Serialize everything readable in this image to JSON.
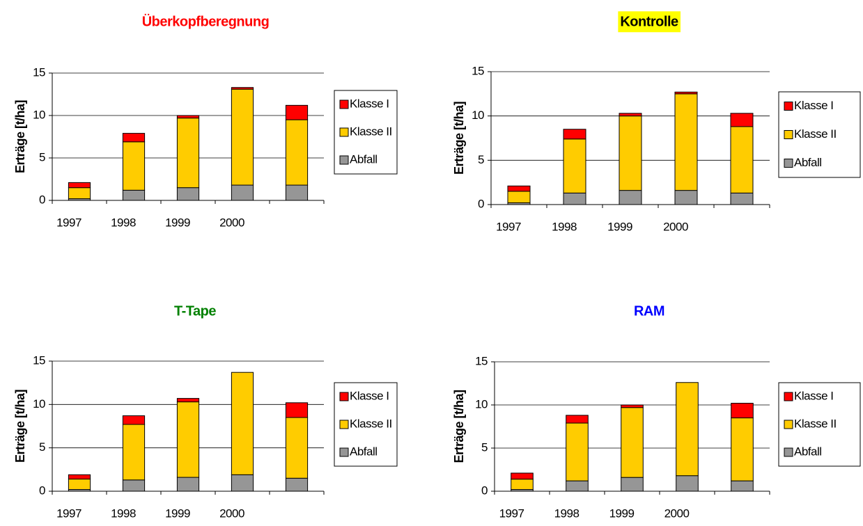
{
  "chart_data": [
    {
      "type": "stacked_bar",
      "title": "Überkopfberegnung",
      "title_color": "#ff0000",
      "y_label": "Erträge [t/ha]",
      "categories": [
        "1997",
        "1998",
        "1999",
        "2000",
        null
      ],
      "series": [
        {
          "name": "Abfall",
          "color": "#969696",
          "values": [
            0.2,
            1.2,
            1.5,
            1.8,
            1.8
          ]
        },
        {
          "name": "Klasse II",
          "color": "#ffcc00",
          "values": [
            1.3,
            5.7,
            8.2,
            11.3,
            7.7
          ]
        },
        {
          "name": "Klasse I",
          "color": "#ff0000",
          "values": [
            0.6,
            1.0,
            0.3,
            0.2,
            1.7
          ]
        }
      ],
      "ylim": [
        0,
        15
      ],
      "yticks": [
        0,
        5,
        10,
        15
      ],
      "grid": true,
      "legend": "right"
    },
    {
      "type": "stacked_bar",
      "title": "Kontrolle",
      "title_color": "#000000",
      "title_background": "#ffff00",
      "y_label": "Erträge [t/ha]",
      "categories": [
        "1997",
        "1998",
        "1999",
        "2000",
        null
      ],
      "series": [
        {
          "name": "Abfall",
          "color": "#969696",
          "values": [
            0.2,
            1.3,
            1.6,
            1.6,
            1.3
          ]
        },
        {
          "name": "Klasse II",
          "color": "#ffcc00",
          "values": [
            1.3,
            6.1,
            8.4,
            10.9,
            7.5
          ]
        },
        {
          "name": "Klasse I",
          "color": "#ff0000",
          "values": [
            0.6,
            1.1,
            0.3,
            0.2,
            1.5
          ]
        }
      ],
      "ylim": [
        0,
        15
      ],
      "yticks": [
        0,
        5,
        10,
        15
      ],
      "grid": true,
      "legend": "right"
    },
    {
      "type": "stacked_bar",
      "title": "T-Tape",
      "title_color": "#008000",
      "y_label": "Erträge [t/ha]",
      "categories": [
        "1997",
        "1998",
        "1999",
        "2000",
        null
      ],
      "series": [
        {
          "name": "Abfall",
          "color": "#969696",
          "values": [
            0.2,
            1.3,
            1.6,
            1.9,
            1.5
          ]
        },
        {
          "name": "Klasse II",
          "color": "#ffcc00",
          "values": [
            1.2,
            6.4,
            8.7,
            11.8,
            7.0
          ]
        },
        {
          "name": "Klasse I",
          "color": "#ff0000",
          "values": [
            0.5,
            1.0,
            0.4,
            0,
            1.7
          ]
        }
      ],
      "ylim": [
        0,
        15
      ],
      "yticks": [
        0,
        5,
        10,
        15
      ],
      "grid": true,
      "legend": "right"
    },
    {
      "type": "stacked_bar",
      "title": "RAM",
      "title_color": "#0000ff",
      "y_label": "Erträge [t/ha]",
      "categories": [
        "1997",
        "1998",
        "1999",
        "2000",
        null
      ],
      "series": [
        {
          "name": "Abfall",
          "color": "#969696",
          "values": [
            0.2,
            1.2,
            1.6,
            1.8,
            1.2
          ]
        },
        {
          "name": "Klasse II",
          "color": "#ffcc00",
          "values": [
            1.2,
            6.7,
            8.1,
            10.8,
            7.3
          ]
        },
        {
          "name": "Klasse I",
          "color": "#ff0000",
          "values": [
            0.7,
            0.9,
            0.3,
            0,
            1.7
          ]
        }
      ],
      "ylim": [
        0,
        15
      ],
      "yticks": [
        0,
        5,
        10,
        15
      ],
      "grid": true,
      "legend": "right"
    }
  ]
}
